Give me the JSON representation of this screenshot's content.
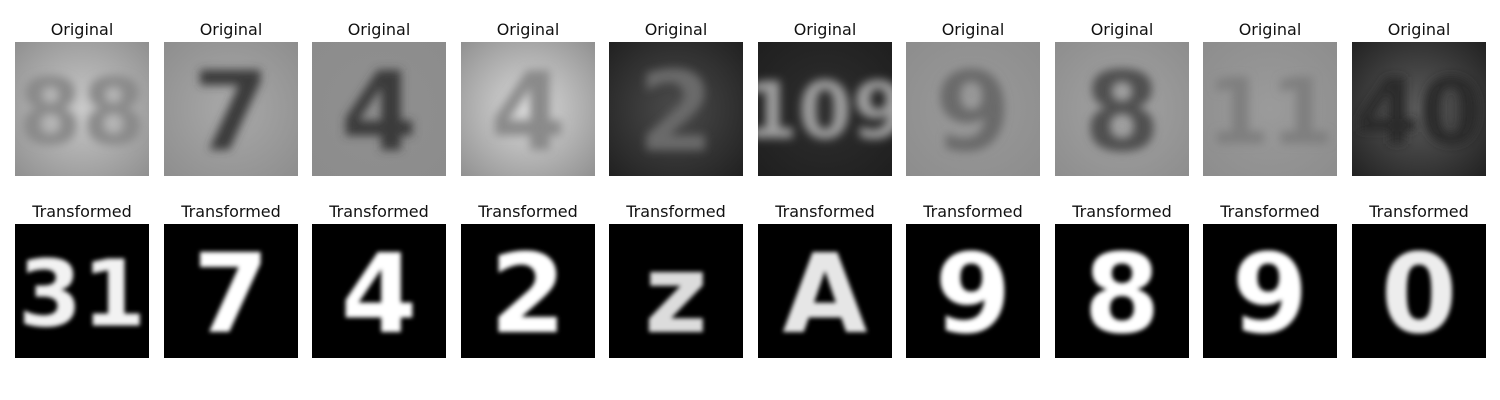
{
  "rows": [
    {
      "kind": "original",
      "items": [
        {
          "title": "Original",
          "digit": "88",
          "bg": "#c9c9c9",
          "fg": "#8a8a8a",
          "theme": "light"
        },
        {
          "title": "Original",
          "digit": "7",
          "bg": "#a9a9a9",
          "fg": "#3a3a3a",
          "theme": "light"
        },
        {
          "title": "Original",
          "digit": "4",
          "bg": "#8f8f8f",
          "fg": "#3b3b3b",
          "theme": "light"
        },
        {
          "title": "Original",
          "digit": "4",
          "bg": "#dadada",
          "fg": "#8a8a8a",
          "theme": "light"
        },
        {
          "title": "Original",
          "digit": "2",
          "bg": "#4b4b4b",
          "fg": "#6a6a6a",
          "theme": "dark"
        },
        {
          "title": "Original",
          "digit": "109",
          "bg": "#2e2e2e",
          "fg": "#9d9d9d",
          "theme": "dark"
        },
        {
          "title": "Original",
          "digit": "9",
          "bg": "#9a9a9a",
          "fg": "#6a6a6a",
          "theme": "light"
        },
        {
          "title": "Original",
          "digit": "8",
          "bg": "#a3a3a3",
          "fg": "#4f4f4f",
          "theme": "light"
        },
        {
          "title": "Original",
          "digit": "11",
          "bg": "#9b9b9b",
          "fg": "#7f7f7f",
          "theme": "light"
        },
        {
          "title": "Original",
          "digit": "40",
          "bg": "#5c5c5c",
          "fg": "#2a2a2a",
          "theme": "dark"
        }
      ]
    },
    {
      "kind": "transformed",
      "items": [
        {
          "title": "Transformed",
          "digit": "31",
          "bg": "#000000",
          "fg": "#f2f2f2"
        },
        {
          "title": "Transformed",
          "digit": "7",
          "bg": "#000000",
          "fg": "#ffffff"
        },
        {
          "title": "Transformed",
          "digit": "4",
          "bg": "#000000",
          "fg": "#ffffff"
        },
        {
          "title": "Transformed",
          "digit": "2",
          "bg": "#000000",
          "fg": "#ffffff"
        },
        {
          "title": "Transformed",
          "digit": "z",
          "bg": "#000000",
          "fg": "#dcdcdc"
        },
        {
          "title": "Transformed",
          "digit": "A",
          "bg": "#000000",
          "fg": "#e6e6e6"
        },
        {
          "title": "Transformed",
          "digit": "9",
          "bg": "#000000",
          "fg": "#ffffff"
        },
        {
          "title": "Transformed",
          "digit": "8",
          "bg": "#000000",
          "fg": "#ffffff"
        },
        {
          "title": "Transformed",
          "digit": "9",
          "bg": "#000000",
          "fg": "#ffffff"
        },
        {
          "title": "Transformed",
          "digit": "0",
          "bg": "#000000",
          "fg": "#ededed"
        }
      ]
    }
  ]
}
